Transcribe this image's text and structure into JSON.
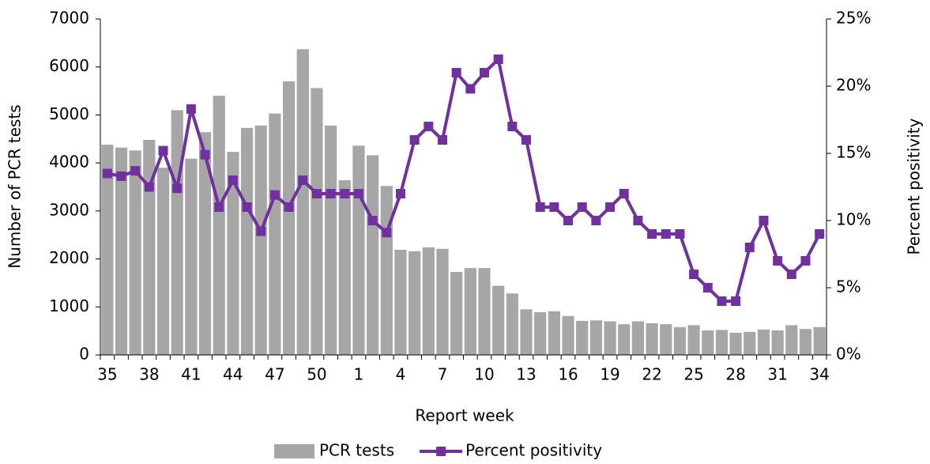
{
  "chart_data": {
    "type": "bar_line",
    "x_label": "Report week",
    "y_label": "Number of PCR tests",
    "y2_label": "Percent positivity",
    "categories": [
      "35",
      null,
      null,
      "38",
      null,
      null,
      "41",
      null,
      null,
      "44",
      null,
      null,
      "47",
      null,
      null,
      "50",
      null,
      null,
      "1",
      null,
      null,
      "4",
      null,
      null,
      "7",
      null,
      null,
      "10",
      null,
      null,
      "13",
      null,
      null,
      "16",
      null,
      null,
      "19",
      null,
      null,
      "22",
      null,
      null,
      "25",
      null,
      null,
      "28",
      null,
      null,
      "31",
      null,
      null,
      "34"
    ],
    "series": [
      {
        "name": "PCR tests",
        "type": "bar",
        "color": "#a6a6a6",
        "values": [
          4380,
          4320,
          4260,
          4480,
          3900,
          5100,
          4090,
          4640,
          5400,
          4230,
          4730,
          4780,
          5030,
          5700,
          6370,
          5560,
          4780,
          3640,
          4360,
          4160,
          3520,
          2190,
          2160,
          2240,
          2210,
          1730,
          1810,
          1810,
          1440,
          1280,
          950,
          890,
          910,
          810,
          710,
          720,
          700,
          640,
          700,
          660,
          640,
          580,
          620,
          510,
          520,
          460,
          480,
          530,
          510,
          620,
          540,
          580
        ]
      },
      {
        "name": "Percent positivity",
        "type": "line",
        "axis": "y2",
        "color": "#7030a0",
        "values": [
          13.5,
          13.3,
          13.7,
          12.5,
          15.2,
          12.4,
          18.3,
          14.9,
          11.0,
          13.0,
          11.0,
          9.2,
          11.9,
          11.0,
          13.0,
          12.0,
          12.0,
          12.0,
          12.0,
          10.0,
          9.1,
          12.0,
          16.0,
          17.0,
          16.0,
          21.0,
          19.8,
          21.0,
          22.0,
          17.0,
          16.0,
          11.0,
          11.0,
          10.0,
          11.0,
          10.0,
          11.0,
          12.0,
          10.0,
          9.0,
          9.0,
          9.0,
          6.0,
          5.0,
          4.0,
          4.0,
          8.0,
          10.0,
          7.0,
          6.0,
          7.0,
          9.0
        ]
      }
    ],
    "ylim": [
      0,
      7000
    ],
    "yticks": [
      0,
      1000,
      2000,
      3000,
      4000,
      5000,
      6000,
      7000
    ],
    "y2lim": [
      0,
      25
    ],
    "y2ticks": [
      {
        "value": 0,
        "label": "0%"
      },
      {
        "value": 5,
        "label": "5%"
      },
      {
        "value": 10,
        "label": "10%"
      },
      {
        "value": 15,
        "label": "15%"
      },
      {
        "value": 20,
        "label": "20%"
      },
      {
        "value": 25,
        "label": "25%"
      }
    ],
    "legend": "bottom"
  }
}
